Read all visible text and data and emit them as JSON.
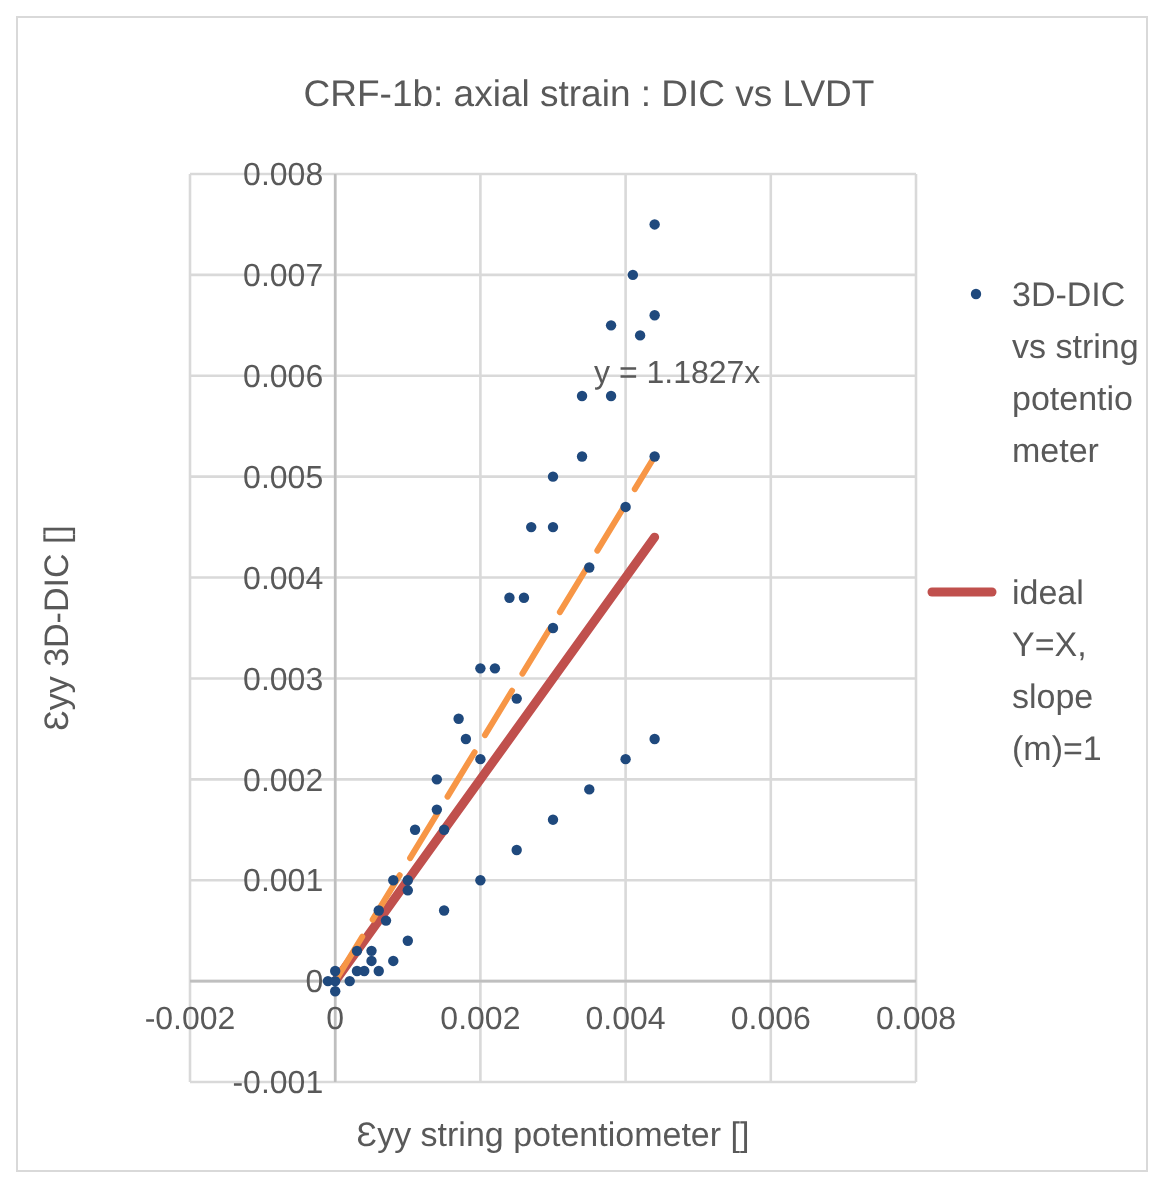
{
  "chart_data": {
    "type": "scatter",
    "title": "CRF-1b: axial strain : DIC vs LVDT",
    "xlabel": "Ɛyy string potentiometer []",
    "ylabel": "Ɛyy 3D-DIC []",
    "xlim": [
      -0.002,
      0.008
    ],
    "ylim": [
      -0.001,
      0.008
    ],
    "xticks": [
      -0.002,
      0,
      0.002,
      0.004,
      0.006,
      0.008
    ],
    "yticks": [
      -0.001,
      0,
      0.001,
      0.002,
      0.003,
      0.004,
      0.005,
      0.006,
      0.007,
      0.008
    ],
    "grid": true,
    "legend": "right",
    "annotations": [
      "y = 1.1827x"
    ],
    "series": [
      {
        "name": "3D-DIC vs string potentiometer",
        "type": "scatter",
        "marker": "circle",
        "color": "#1f497d",
        "x": [
          -0.0001,
          0,
          0.0002,
          0.0004,
          0.0006,
          0.0008,
          0,
          0.0003,
          0.0006,
          0.0008,
          0.0011,
          0.0014,
          0.0017,
          0.002,
          0.0024,
          0.0027,
          0.003,
          0.0034,
          0.0038,
          0.0041,
          0.0044,
          0.0003,
          0.0007,
          0.001,
          0.0014,
          0.0018,
          0.0022,
          0.0026,
          0.003,
          0.0034,
          0.0038,
          0.0042,
          0.0044,
          0.0005,
          0.001,
          0.0015,
          0.002,
          0.0025,
          0.003,
          0.0035,
          0.004,
          0.0044,
          0,
          0.0005,
          0.001,
          0.0015,
          0.002,
          0.0025,
          0.003,
          0.0035,
          0.004,
          0.0044
        ],
        "values": [
          0,
          -0.0001,
          0,
          0.0001,
          0.0001,
          0.0002,
          0,
          0.0003,
          0.0007,
          0.001,
          0.0015,
          0.002,
          0.0026,
          0.0031,
          0.0038,
          0.0045,
          0.005,
          0.0058,
          0.0065,
          0.007,
          0.0075,
          0.0001,
          0.0006,
          0.001,
          0.0017,
          0.0024,
          0.0031,
          0.0038,
          0.0045,
          0.0052,
          0.0058,
          0.0064,
          0.0066,
          0.0003,
          0.0009,
          0.0015,
          0.0022,
          0.0028,
          0.0035,
          0.0041,
          0.0047,
          0.0052,
          0.0001,
          0.0002,
          0.0004,
          0.0007,
          0.001,
          0.0013,
          0.0016,
          0.0019,
          0.0022,
          0.0024
        ]
      },
      {
        "name": "ideal Y=X, slope (m)=1",
        "type": "line",
        "marker": "none",
        "color": "#c0504d",
        "x": [
          0,
          0.0044
        ],
        "values": [
          0,
          0.0044
        ]
      },
      {
        "type": "line",
        "marker": "none",
        "color": "#f79646",
        "line_style": "dashed",
        "x": [
          0,
          0.0044
        ],
        "values": [
          0,
          0.0052
        ]
      }
    ]
  }
}
